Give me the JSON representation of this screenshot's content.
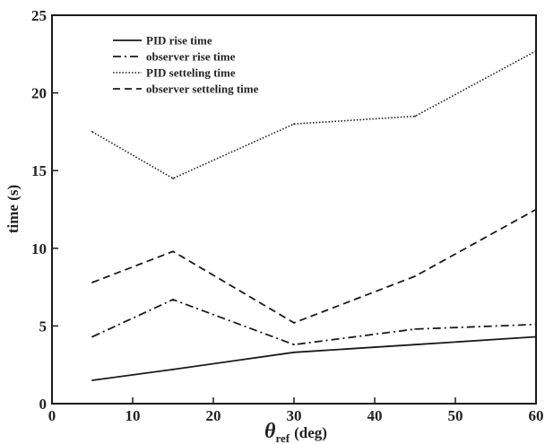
{
  "chart_data": {
    "type": "line",
    "xlabel_symbol": "θ",
    "xlabel_subscript": "ref",
    "xlabel_unit": "(deg)",
    "ylabel": "time (s)",
    "xlim": [
      0,
      60
    ],
    "ylim": [
      0,
      25
    ],
    "xticks": [
      "0",
      "10",
      "20",
      "30",
      "40",
      "50",
      "60"
    ],
    "yticks": [
      "0",
      "5",
      "10",
      "15",
      "20",
      "25"
    ],
    "grid": false,
    "legend_position": "top-left",
    "x": [
      5,
      15,
      30,
      45,
      60
    ],
    "series": [
      {
        "name": "PID rise time",
        "style": "solid",
        "values": [
          1.5,
          2.2,
          3.3,
          3.8,
          4.3
        ]
      },
      {
        "name": "observer rise time",
        "style": "dashdot",
        "values": [
          4.3,
          6.7,
          3.8,
          4.8,
          5.1
        ]
      },
      {
        "name": "PID setteling time",
        "style": "dotted",
        "values": [
          17.5,
          14.5,
          18.0,
          18.5,
          22.7
        ]
      },
      {
        "name": "observer setteling time",
        "style": "dashed",
        "values": [
          7.8,
          9.8,
          5.2,
          8.2,
          12.5
        ]
      }
    ]
  }
}
